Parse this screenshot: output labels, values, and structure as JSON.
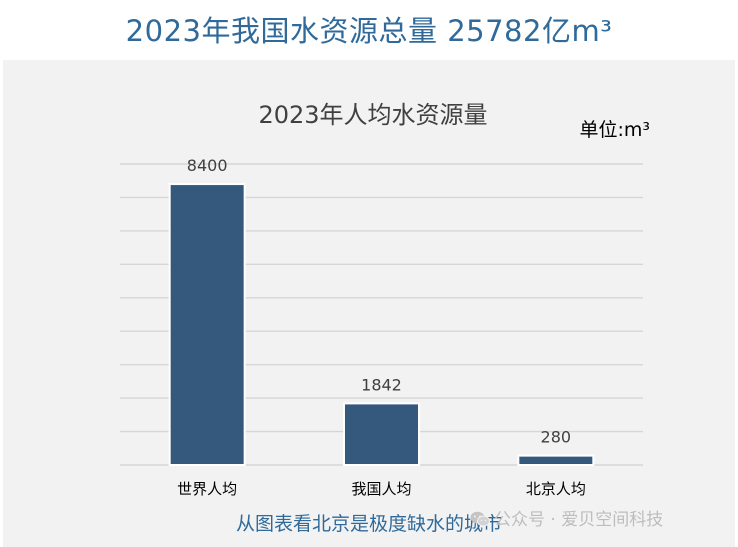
{
  "header": {
    "title": "2023年我国水资源总量 25782亿m³"
  },
  "chart_data": {
    "type": "bar",
    "title": "2023年人均水资源量",
    "unit_label": "单位:m³",
    "categories": [
      "世界人均",
      "我国人均",
      "北京人均"
    ],
    "values": [
      8400,
      1842,
      280
    ],
    "data_labels": [
      "8400",
      "1842",
      "280"
    ],
    "ylim": [
      0,
      9000
    ],
    "grid": true,
    "bar_color": "#34597d",
    "grid_color": "#d6d6d6"
  },
  "footer": {
    "caption": "从图表看北京是极度缺水的城市",
    "watermark": "公众号 · 爱贝空间科技",
    "watermark_icon": "wechat-icon"
  }
}
